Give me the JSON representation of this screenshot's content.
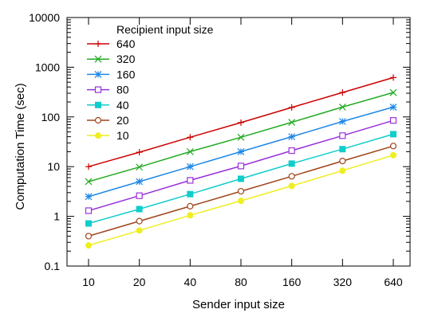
{
  "chart_data": {
    "type": "line",
    "title": "",
    "xlabel": "Sender input size",
    "ylabel": "Computation Time (sec)",
    "x_scale": "log2",
    "y_scale": "log10",
    "categories": [
      "10",
      "20",
      "40",
      "80",
      "160",
      "320",
      "640"
    ],
    "y_ticks": [
      "0.1",
      "1",
      "10",
      "100",
      "1000",
      "10000"
    ],
    "ylim": [
      0.1,
      10000
    ],
    "grid": false,
    "legend": {
      "title": "Recipient input size",
      "placement": "top-left"
    },
    "series": [
      {
        "name": "640",
        "color": "#cc0000",
        "marker": "plus",
        "values": [
          10,
          19.5,
          39,
          77,
          155,
          310,
          620
        ]
      },
      {
        "name": "320",
        "color": "#22aa22",
        "marker": "cross",
        "values": [
          5,
          9.8,
          20,
          39,
          78,
          158,
          310
        ]
      },
      {
        "name": "160",
        "color": "#1e88e5",
        "marker": "star",
        "values": [
          2.5,
          5,
          10,
          20,
          40,
          81,
          158
        ]
      },
      {
        "name": "80",
        "color": "#9b30d9",
        "marker": "open-square",
        "values": [
          1.3,
          2.6,
          5.3,
          10.3,
          21,
          42,
          85
        ]
      },
      {
        "name": "40",
        "color": "#11cccc",
        "marker": "filled-square",
        "values": [
          0.72,
          1.4,
          2.8,
          5.7,
          11.5,
          22.5,
          45
        ]
      },
      {
        "name": "20",
        "color": "#a0441a",
        "marker": "open-circle",
        "values": [
          0.4,
          0.8,
          1.6,
          3.2,
          6.4,
          13,
          26
        ]
      },
      {
        "name": "10",
        "color": "#eeee22",
        "marker": "filled-circle",
        "values": [
          0.26,
          0.52,
          1.05,
          2.05,
          4.1,
          8.3,
          17
        ]
      }
    ]
  }
}
